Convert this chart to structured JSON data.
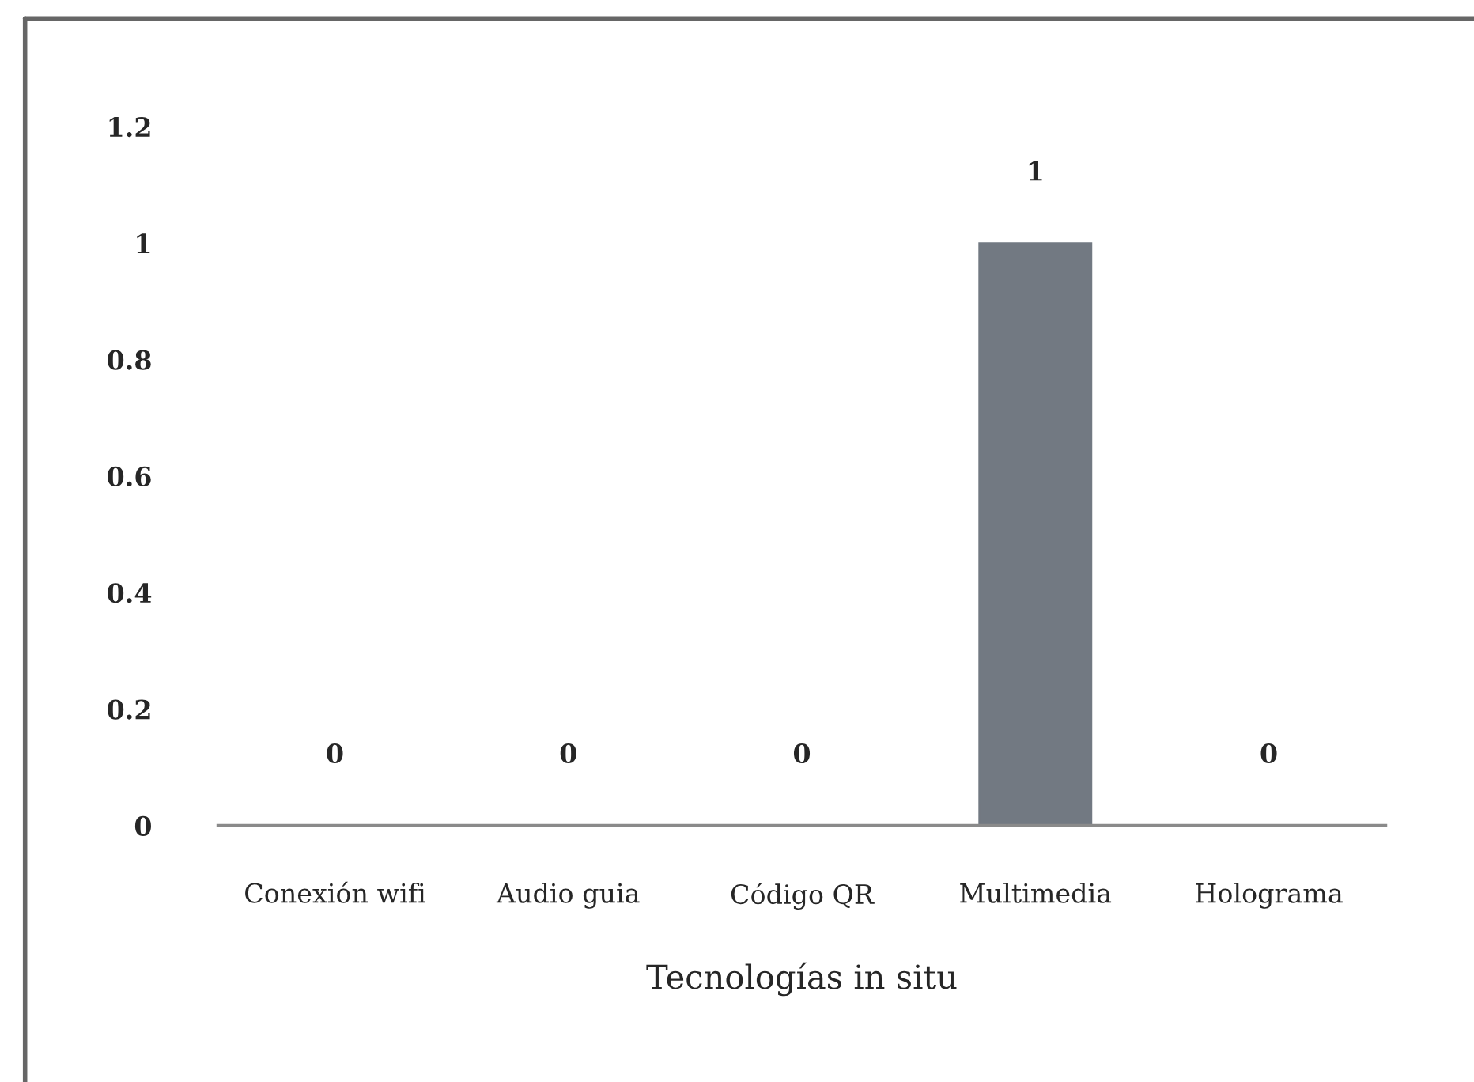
{
  "chart_data": {
    "type": "bar",
    "xlabel": "Tecnologías in situ",
    "categories": [
      "Conexión wifi",
      "Audio guia",
      "Código QR",
      "Multimedia",
      "Holograma"
    ],
    "values": [
      0,
      0,
      0,
      1,
      0
    ],
    "color": "#727982",
    "ylim": [
      0,
      1.2
    ],
    "yticks": [
      0,
      0.2,
      0.4,
      0.6,
      0.8,
      1,
      1.2
    ],
    "data_labels": true,
    "grid": false,
    "legend": false
  }
}
